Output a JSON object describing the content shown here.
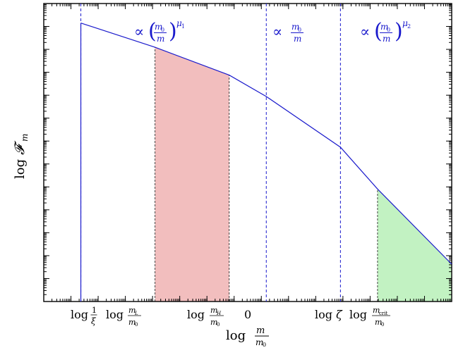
{
  "chart_data": {
    "type": "line",
    "title": "",
    "xlabel": "log m/m₀",
    "ylabel": "log 𝓕ₘ",
    "x_ticks": [
      "log 1/ξ",
      "log mL/m0",
      "log mH/m0",
      "0",
      "log ζ",
      "log mcrit/m0"
    ],
    "series": [
      {
        "x": [
          1.0,
          3.0,
          5.0,
          6.0,
          8.0,
          9.0,
          11.0
        ],
        "y": [
          10.0,
          9.13,
          8.13,
          7.36,
          5.54,
          4.04,
          1.34
        ]
      }
    ],
    "xlim": [
      0.0,
      11.0
    ],
    "ylim": [
      0.0,
      10.7
    ],
    "vlines": [
      1.0,
      6.0,
      8.0
    ],
    "shaded_regions": [
      {
        "from": 3.0,
        "to": 5.0,
        "color": "#f2bebe"
      },
      {
        "from": 9.0,
        "to": 11.0,
        "color": "#c2f2c2"
      }
    ],
    "regime_labels": [
      {
        "text": "∝ (m0/m)^μ1"
      },
      {
        "text": "∝ m0/m"
      },
      {
        "text": "∝ (m0/m)^μ2"
      }
    ],
    "colors": {
      "line": "#1a1acc",
      "vline": "#1a1acc"
    }
  }
}
